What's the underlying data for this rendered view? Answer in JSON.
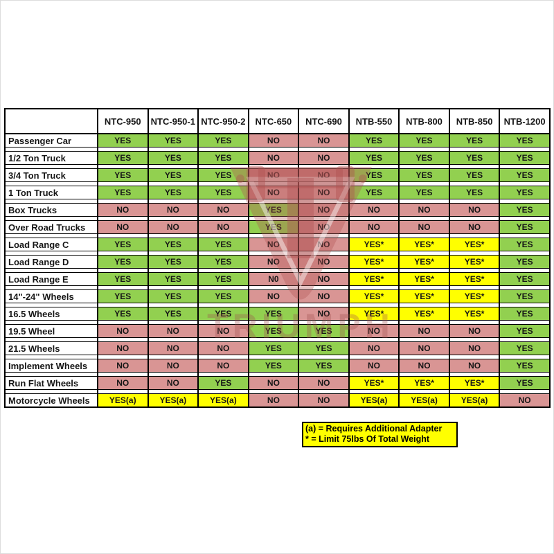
{
  "chart_data": {
    "type": "table",
    "title": "Tire changer wheel compatibility matrix",
    "columns": [
      "NTC-950",
      "NTC-950-1",
      "NTC-950-2",
      "NTC-650",
      "NTC-690",
      "NTB-550",
      "NTB-800",
      "NTB-850",
      "NTB-1200"
    ],
    "rows": [
      {
        "label": "Passenger Car",
        "values": [
          "YES",
          "YES",
          "YES",
          "NO",
          "NO",
          "YES",
          "YES",
          "YES",
          "YES"
        ]
      },
      {
        "label": "1/2 Ton Truck",
        "values": [
          "YES",
          "YES",
          "YES",
          "NO",
          "NO",
          "YES",
          "YES",
          "YES",
          "YES"
        ]
      },
      {
        "label": "3/4 Ton Truck",
        "values": [
          "YES",
          "YES",
          "YES",
          "NO",
          "NO",
          "YES",
          "YES",
          "YES",
          "YES"
        ]
      },
      {
        "label": "1 Ton Truck",
        "values": [
          "YES",
          "YES",
          "YES",
          "NO",
          "NO",
          "YES",
          "YES",
          "YES",
          "YES"
        ]
      },
      {
        "label": "Box Trucks",
        "values": [
          "NO",
          "NO",
          "NO",
          "YES",
          "NO",
          "NO",
          "NO",
          "NO",
          "YES"
        ]
      },
      {
        "label": "Over Road Trucks",
        "values": [
          "NO",
          "NO",
          "NO",
          "YES",
          "NO",
          "NO",
          "NO",
          "NO",
          "YES"
        ]
      },
      {
        "label": "Load Range C",
        "values": [
          "YES",
          "YES",
          "YES",
          "NO",
          "NO",
          "YES*",
          "YES*",
          "YES*",
          "YES"
        ]
      },
      {
        "label": "Load Range D",
        "values": [
          "YES",
          "YES",
          "YES",
          "NO",
          "NO",
          "YES*",
          "YES*",
          "YES*",
          "YES"
        ]
      },
      {
        "label": "Load Range E",
        "values": [
          "YES",
          "YES",
          "YES",
          "N0",
          "NO",
          "YES*",
          "YES*",
          "YES*",
          "YES"
        ]
      },
      {
        "label": "14\"-24\" Wheels",
        "values": [
          "YES",
          "YES",
          "YES",
          "NO",
          "NO",
          "YES*",
          "YES*",
          "YES*",
          "YES"
        ]
      },
      {
        "label": "16.5 Wheels",
        "values": [
          "YES",
          "YES",
          "YES",
          "YES",
          "NO",
          "YES*",
          "YES*",
          "YES*",
          "YES"
        ]
      },
      {
        "label": "19.5 Wheel",
        "values": [
          "NO",
          "NO",
          "NO",
          "YES",
          "YES",
          "NO",
          "NO",
          "NO",
          "YES"
        ]
      },
      {
        "label": "21.5 Wheels",
        "values": [
          "NO",
          "NO",
          "NO",
          "YES",
          "YES",
          "NO",
          "NO",
          "NO",
          "YES"
        ]
      },
      {
        "label": "Implement Wheels",
        "values": [
          "NO",
          "NO",
          "NO",
          "YES",
          "YES",
          "NO",
          "NO",
          "NO",
          "YES"
        ]
      },
      {
        "label": "Run Flat Wheels",
        "values": [
          "NO",
          "NO",
          "YES",
          "NO",
          "NO",
          "YES*",
          "YES*",
          "YES*",
          "YES"
        ]
      },
      {
        "label": "Motorcycle Wheels",
        "values": [
          "YES(a)",
          "YES(a)",
          "YES(a)",
          "NO",
          "NO",
          "YES(a)",
          "YES(a)",
          "YES(a)",
          "NO"
        ]
      }
    ],
    "legend_position": "none",
    "grid": true
  },
  "cell_colors": {
    "yes": "#92D050",
    "no": "#D99594",
    "special": "#FFFF00"
  },
  "footnote": {
    "lines": [
      "(a) = Requires Additional Adapter",
      "* = Limit 75lbs Of Total Weight"
    ]
  },
  "watermark": {
    "text": "TRIUMPH"
  }
}
